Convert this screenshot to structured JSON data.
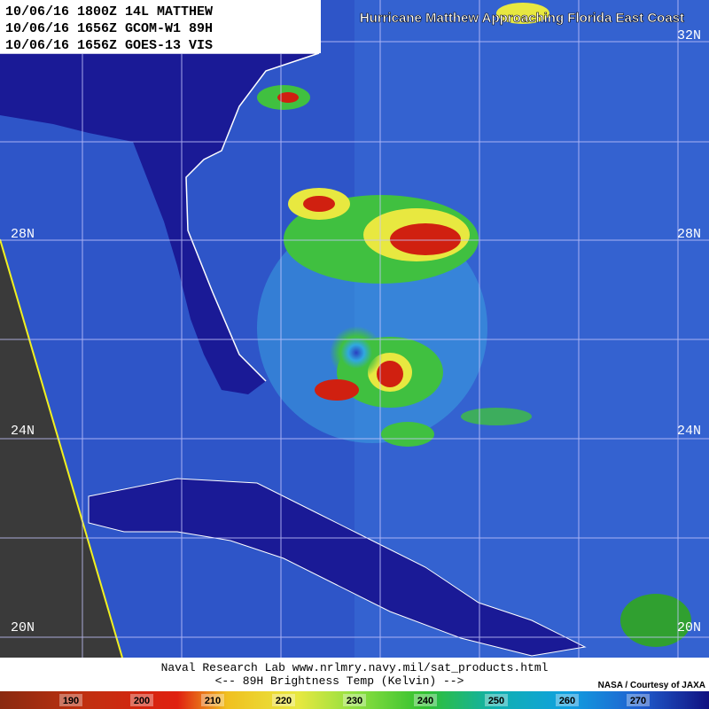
{
  "header": {
    "lines": [
      "10/06/16 1800Z 14L MATTHEW",
      "10/06/16 1656Z GCOM-W1 89H",
      "10/06/16 1656Z GOES-13 VIS"
    ],
    "title": "Hurricane Matthew Approaching Florida East Coast"
  },
  "latitudes": {
    "left": [
      "28N",
      "24N",
      "20N"
    ],
    "right": [
      "32N",
      "28N",
      "24N",
      "20N"
    ]
  },
  "footer": {
    "lines": [
      "Naval Research Lab  www.nrlmry.navy.mil/sat_products.html",
      "<--   89H Brightness Temp (Kelvin)   -->"
    ],
    "credit": "NASA / Courtesy of JAXA"
  },
  "colorbar": {
    "labels": [
      190,
      200,
      210,
      220,
      230,
      240,
      250,
      260,
      270
    ]
  }
}
